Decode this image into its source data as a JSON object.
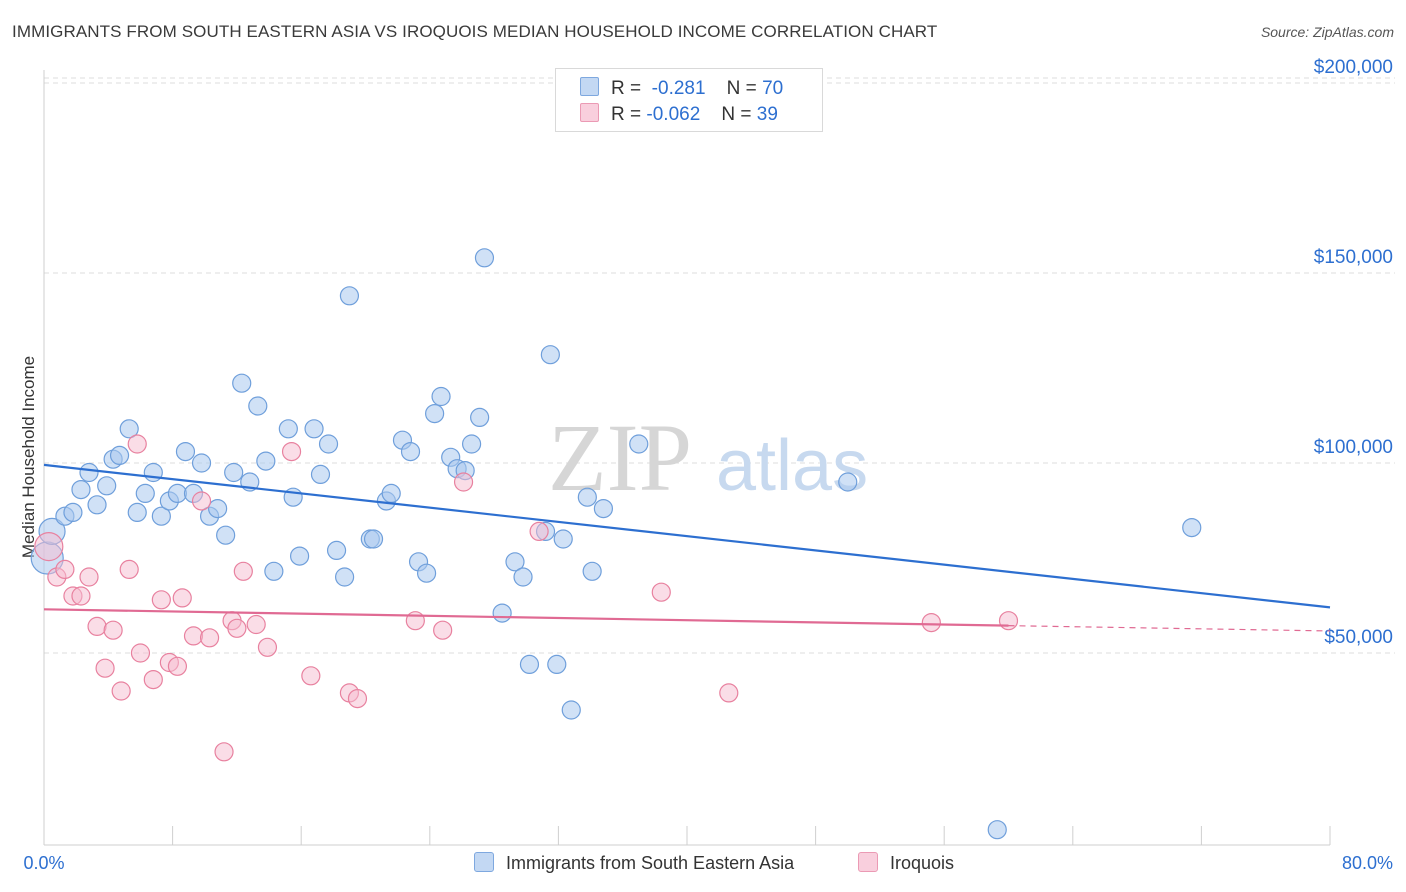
{
  "title": "IMMIGRANTS FROM SOUTH EASTERN ASIA VS IROQUOIS MEDIAN HOUSEHOLD INCOME CORRELATION CHART",
  "source": "Source: ZipAtlas.com",
  "watermark": {
    "zip": "ZIP",
    "atlas": "atlas"
  },
  "colors": {
    "blue_fill": "#a9c8ef",
    "blue_stroke": "#6f9fdb",
    "blue_line": "#2d6fd0",
    "pink_fill": "#f6bccf",
    "pink_stroke": "#e8819f",
    "pink_line": "#e06a93",
    "tick_label": "#2d6fd0",
    "grid": "#dddddd"
  },
  "legend_top": {
    "rows": [
      {
        "r_label": "R =",
        "r_value": "-0.281",
        "n_label": "N =",
        "n_value": "70"
      },
      {
        "r_label": "R =",
        "r_value": "-0.062",
        "n_label": "N =",
        "n_value": "39"
      }
    ]
  },
  "legend_bottom": {
    "items": [
      {
        "label": "Immigrants from South Eastern Asia"
      },
      {
        "label": "Iroquois"
      }
    ]
  },
  "chart_data": {
    "type": "scatter",
    "title": "IMMIGRANTS FROM SOUTH EASTERN ASIA VS IROQUOIS MEDIAN HOUSEHOLD INCOME CORRELATION CHART",
    "xlabel": "",
    "ylabel": "Median Household Income",
    "xlim": [
      0,
      80
    ],
    "ylim": [
      0,
      205000
    ],
    "x_tick_labels": [
      "0.0%",
      "80.0%"
    ],
    "y_ticks": [
      50000,
      100000,
      150000,
      200000
    ],
    "y_tick_labels": [
      "$50,000",
      "$100,000",
      "$150,000",
      "$200,000"
    ],
    "grid": true,
    "legend_position": "top-center",
    "series": [
      {
        "name": "Immigrants from South Eastern Asia",
        "r": -0.281,
        "n": 70,
        "trend": {
          "x": [
            0,
            80
          ],
          "y": [
            99500,
            62000
          ]
        },
        "points": [
          [
            0.2,
            75000
          ],
          [
            0.5,
            82000
          ],
          [
            1.3,
            86000
          ],
          [
            1.8,
            87000
          ],
          [
            2.3,
            93000
          ],
          [
            2.8,
            97500
          ],
          [
            3.3,
            89000
          ],
          [
            3.9,
            94000
          ],
          [
            4.3,
            101000
          ],
          [
            4.7,
            102000
          ],
          [
            5.3,
            109000
          ],
          [
            5.8,
            87000
          ],
          [
            6.3,
            92000
          ],
          [
            6.8,
            97500
          ],
          [
            7.3,
            86000
          ],
          [
            7.8,
            90000
          ],
          [
            8.3,
            92000
          ],
          [
            8.8,
            103000
          ],
          [
            9.3,
            92000
          ],
          [
            9.8,
            100000
          ],
          [
            10.3,
            86000
          ],
          [
            10.8,
            88000
          ],
          [
            11.3,
            81000
          ],
          [
            11.8,
            97500
          ],
          [
            12.3,
            121000
          ],
          [
            12.8,
            95000
          ],
          [
            13.3,
            115000
          ],
          [
            13.8,
            100500
          ],
          [
            14.3,
            71500
          ],
          [
            15.2,
            109000
          ],
          [
            15.5,
            91000
          ],
          [
            15.9,
            75500
          ],
          [
            16.8,
            109000
          ],
          [
            17.2,
            97000
          ],
          [
            17.7,
            105000
          ],
          [
            18.2,
            77000
          ],
          [
            18.7,
            70000
          ],
          [
            19.0,
            144000
          ],
          [
            20.3,
            80000
          ],
          [
            20.5,
            80000
          ],
          [
            21.3,
            90000
          ],
          [
            21.6,
            92000
          ],
          [
            22.3,
            106000
          ],
          [
            22.8,
            103000
          ],
          [
            23.3,
            74000
          ],
          [
            23.8,
            71000
          ],
          [
            24.3,
            113000
          ],
          [
            24.7,
            117500
          ],
          [
            25.3,
            101500
          ],
          [
            25.7,
            98500
          ],
          [
            26.2,
            98000
          ],
          [
            26.6,
            105000
          ],
          [
            27.1,
            112000
          ],
          [
            27.4,
            154000
          ],
          [
            28.5,
            60500
          ],
          [
            29.3,
            74000
          ],
          [
            29.8,
            70000
          ],
          [
            30.2,
            47000
          ],
          [
            31.2,
            82000
          ],
          [
            31.5,
            128500
          ],
          [
            31.9,
            47000
          ],
          [
            32.3,
            80000
          ],
          [
            32.8,
            35000
          ],
          [
            33.8,
            91000
          ],
          [
            34.1,
            71500
          ],
          [
            34.8,
            88000
          ],
          [
            37.0,
            105000
          ],
          [
            50.0,
            95000
          ],
          [
            59.3,
            3500
          ],
          [
            71.4,
            83000
          ]
        ]
      },
      {
        "name": "Iroquois",
        "r": -0.062,
        "n": 39,
        "trend": {
          "x": [
            0,
            60
          ],
          "y": [
            61500,
            57200
          ]
        },
        "trend_dashed": {
          "x": [
            60,
            80
          ],
          "y": [
            57200,
            55800
          ]
        },
        "points": [
          [
            0.3,
            78000
          ],
          [
            0.8,
            70000
          ],
          [
            1.3,
            72000
          ],
          [
            1.8,
            65000
          ],
          [
            2.3,
            65000
          ],
          [
            2.8,
            70000
          ],
          [
            3.3,
            57000
          ],
          [
            3.8,
            46000
          ],
          [
            4.3,
            56000
          ],
          [
            4.8,
            40000
          ],
          [
            5.3,
            72000
          ],
          [
            5.8,
            105000
          ],
          [
            6.0,
            50000
          ],
          [
            6.8,
            43000
          ],
          [
            7.3,
            64000
          ],
          [
            7.8,
            47500
          ],
          [
            8.3,
            46500
          ],
          [
            8.6,
            64500
          ],
          [
            9.3,
            54500
          ],
          [
            9.8,
            90000
          ],
          [
            10.3,
            54000
          ],
          [
            11.2,
            24000
          ],
          [
            11.7,
            58500
          ],
          [
            12.0,
            56500
          ],
          [
            12.4,
            71500
          ],
          [
            13.2,
            57500
          ],
          [
            13.9,
            51500
          ],
          [
            15.4,
            103000
          ],
          [
            16.6,
            44000
          ],
          [
            19.0,
            39500
          ],
          [
            19.5,
            38000
          ],
          [
            23.1,
            58500
          ],
          [
            24.8,
            56000
          ],
          [
            26.1,
            95000
          ],
          [
            30.8,
            82000
          ],
          [
            38.4,
            66000
          ],
          [
            42.6,
            39500
          ],
          [
            55.2,
            58000
          ],
          [
            60.0,
            58500
          ]
        ]
      }
    ]
  }
}
